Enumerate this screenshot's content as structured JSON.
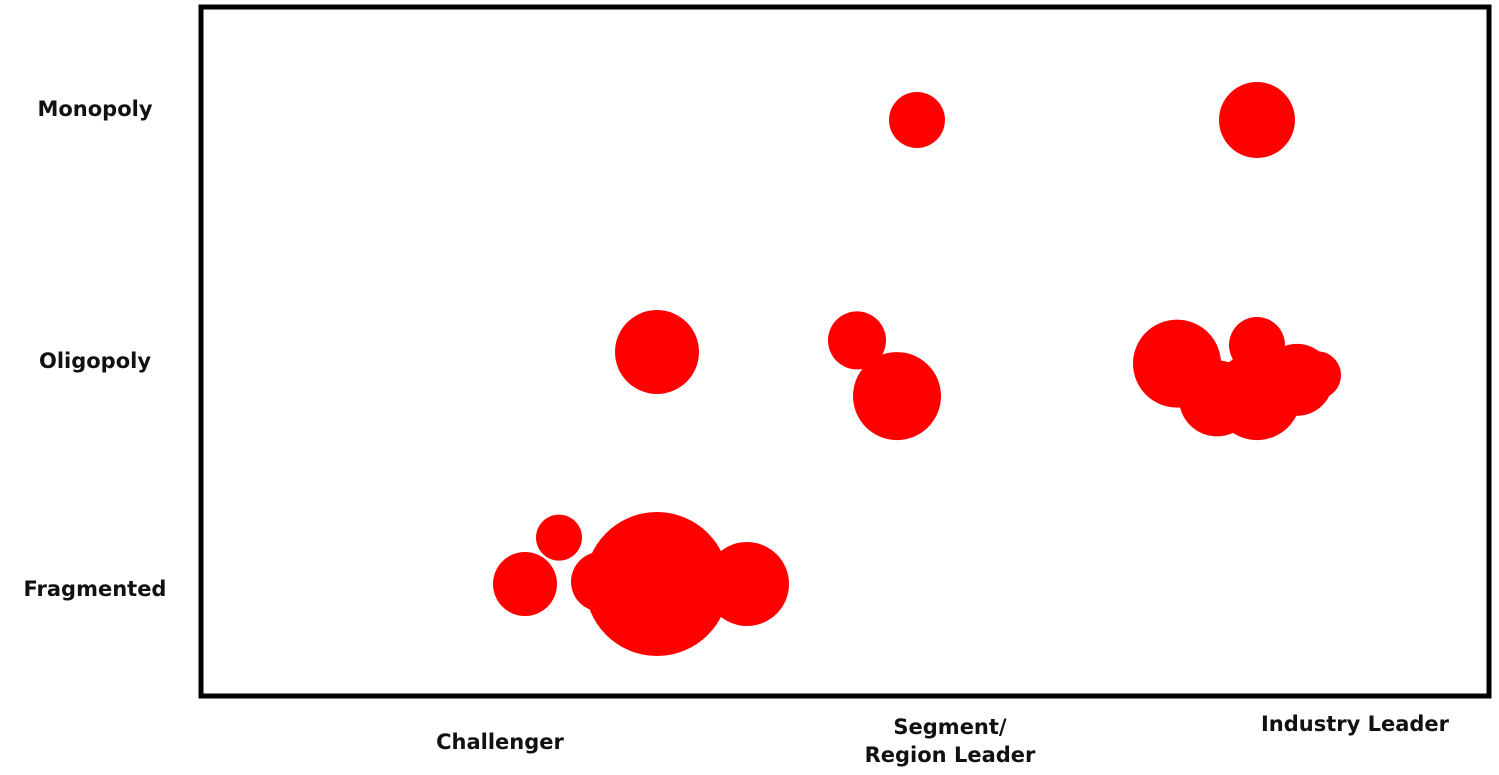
{
  "chart_data": {
    "type": "scatter",
    "title": "",
    "xlabel": "",
    "ylabel": "",
    "x_categories": [
      "Challenger",
      "Segment/\nRegion Leader",
      "Industry Leader"
    ],
    "y_categories": [
      "Fragmented",
      "Oligopoly",
      "Monopoly"
    ],
    "marker_color": "#ff0000",
    "frame_color": "#000000",
    "grid": false,
    "legend": "none",
    "bubbles": [
      {
        "x": 0.34,
        "y": 0.0,
        "size": 32
      },
      {
        "x": 0.51,
        "y": 0.2,
        "size": 23
      },
      {
        "x": 0.72,
        "y": 0.01,
        "size": 30
      },
      {
        "x": 1.0,
        "y": 0.0,
        "size": 72
      },
      {
        "x": 1.45,
        "y": 0.0,
        "size": 42
      },
      {
        "x": 1.0,
        "y": 1.0,
        "size": 42
      },
      {
        "x": 2.0,
        "y": 1.05,
        "size": 29
      },
      {
        "x": 2.2,
        "y": 0.81,
        "size": 27
      },
      {
        "x": 2.2,
        "y": 0.81,
        "size": 44
      },
      {
        "x": 2.3,
        "y": 2.0,
        "size": 28
      },
      {
        "x": 3.6,
        "y": 0.95,
        "size": 44
      },
      {
        "x": 3.8,
        "y": 0.8,
        "size": 38
      },
      {
        "x": 4.0,
        "y": 0.81,
        "size": 44
      },
      {
        "x": 4.0,
        "y": 1.03,
        "size": 28
      },
      {
        "x": 4.2,
        "y": 0.88,
        "size": 36
      },
      {
        "x": 4.3,
        "y": 0.9,
        "size": 24
      },
      {
        "x": 4.0,
        "y": 2.0,
        "size": 38
      }
    ]
  }
}
